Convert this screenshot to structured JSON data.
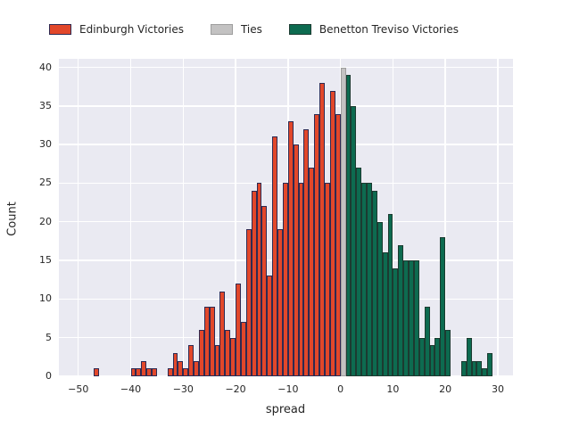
{
  "legend": {
    "items": [
      {
        "label": "Edinburgh Victories",
        "color": "#e2472a",
        "edge": "#2e2a52"
      },
      {
        "label": "Ties",
        "color": "#c3c2c2",
        "edge": "#9e9e9e"
      },
      {
        "label": "Benetton Treviso Victories",
        "color": "#0d6b50",
        "edge": "#1c3b31"
      }
    ]
  },
  "axes": {
    "xlabel": "spread",
    "ylabel": "Count",
    "x_tick_labels": [
      "−50",
      "−40",
      "−30",
      "−20",
      "−10",
      "0",
      "10",
      "20",
      "30"
    ],
    "y_tick_labels": [
      "0",
      "5",
      "10",
      "15",
      "20",
      "25",
      "30",
      "35",
      "40"
    ]
  },
  "colors": {
    "plot_background": "#eaeaf2",
    "grid": "#ffffff",
    "text": "#262626"
  },
  "chart_data": {
    "type": "bar",
    "subtype": "histogram",
    "title": "",
    "xlabel": "spread",
    "ylabel": "Count",
    "xlim": [
      -53.7,
      32.9
    ],
    "ylim": [
      0,
      41.1
    ],
    "x_ticks": [
      -50,
      -40,
      -30,
      -20,
      -10,
      0,
      10,
      20,
      30
    ],
    "y_ticks": [
      0,
      5,
      10,
      15,
      20,
      25,
      30,
      35,
      40
    ],
    "grid": true,
    "legend_position": "top",
    "bin_width": 1,
    "series": [
      {
        "name": "Edinburgh Victories",
        "color": "#e2472a",
        "edge": "#2e2a52",
        "bins": [
          [
            -47,
            1
          ],
          [
            -40,
            1
          ],
          [
            -39,
            1
          ],
          [
            -38,
            2
          ],
          [
            -37,
            1
          ],
          [
            -36,
            1
          ],
          [
            -33,
            1
          ],
          [
            -32,
            3
          ],
          [
            -31,
            2
          ],
          [
            -30,
            1
          ],
          [
            -29,
            4
          ],
          [
            -28,
            2
          ],
          [
            -27,
            6
          ],
          [
            -26,
            9
          ],
          [
            -25,
            9
          ],
          [
            -24,
            4
          ],
          [
            -23,
            11
          ],
          [
            -22,
            6
          ],
          [
            -21,
            5
          ],
          [
            -20,
            12
          ],
          [
            -19,
            7
          ],
          [
            -18,
            19
          ],
          [
            -17,
            24
          ],
          [
            -16,
            25
          ],
          [
            -15,
            22
          ],
          [
            -14,
            13
          ],
          [
            -13,
            31
          ],
          [
            -12,
            19
          ],
          [
            -11,
            25
          ],
          [
            -10,
            33
          ],
          [
            -9,
            30
          ],
          [
            -8,
            25
          ],
          [
            -7,
            32
          ],
          [
            -6,
            27
          ],
          [
            -5,
            34
          ],
          [
            -4,
            38
          ],
          [
            -3,
            25
          ],
          [
            -2,
            37
          ],
          [
            -1,
            34
          ]
        ]
      },
      {
        "name": "Ties",
        "color": "#c3c2c2",
        "edge": "#9e9e9e",
        "bins": [
          [
            0,
            40
          ]
        ]
      },
      {
        "name": "Benetton Treviso Victories",
        "color": "#0d6b50",
        "edge": "#1c3b31",
        "bins": [
          [
            1,
            39
          ],
          [
            2,
            35
          ],
          [
            3,
            27
          ],
          [
            4,
            25
          ],
          [
            5,
            25
          ],
          [
            6,
            24
          ],
          [
            7,
            20
          ],
          [
            8,
            16
          ],
          [
            9,
            21
          ],
          [
            10,
            14
          ],
          [
            11,
            17
          ],
          [
            12,
            15
          ],
          [
            13,
            15
          ],
          [
            14,
            15
          ],
          [
            15,
            5
          ],
          [
            16,
            9
          ],
          [
            17,
            4
          ],
          [
            18,
            5
          ],
          [
            19,
            18
          ],
          [
            20,
            6
          ],
          [
            23,
            2
          ],
          [
            24,
            5
          ],
          [
            25,
            2
          ],
          [
            26,
            2
          ],
          [
            27,
            1
          ],
          [
            28,
            3
          ]
        ]
      }
    ]
  }
}
